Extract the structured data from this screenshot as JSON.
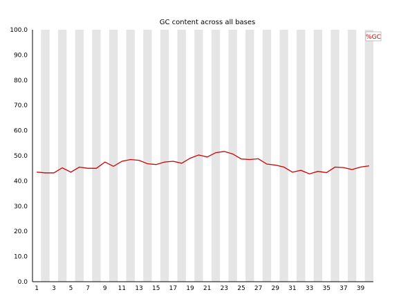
{
  "chart_data": {
    "type": "line",
    "title": "GC content across all bases",
    "xlabel": "",
    "ylabel": "",
    "xlim": [
      1,
      40
    ],
    "ylim": [
      0,
      100
    ],
    "y_ticks": [
      "0.0",
      "10.0",
      "20.0",
      "30.0",
      "40.0",
      "50.0",
      "60.0",
      "70.0",
      "80.0",
      "90.0",
      "100.0"
    ],
    "x_ticks": [
      "1",
      "3",
      "5",
      "7",
      "9",
      "11",
      "13",
      "15",
      "17",
      "19",
      "21",
      "23",
      "25",
      "27",
      "29",
      "31",
      "33",
      "35",
      "37",
      "39"
    ],
    "legend": {
      "placement": "top-right"
    },
    "grid": "alternating vertical bands",
    "colors": {
      "line": "#cc0000",
      "band": "#e5e5e5",
      "axis": "#000000"
    },
    "series": [
      {
        "name": "%GC",
        "x": [
          1,
          2,
          3,
          4,
          5,
          6,
          7,
          8,
          9,
          10,
          11,
          12,
          13,
          14,
          15,
          16,
          17,
          18,
          19,
          20,
          21,
          22,
          23,
          24,
          25,
          26,
          27,
          28,
          29,
          30,
          31,
          32,
          33,
          34,
          35,
          36,
          37,
          38,
          39,
          40
        ],
        "values": [
          43.5,
          43.2,
          43.2,
          45.2,
          43.5,
          45.5,
          45.0,
          45.0,
          47.5,
          45.8,
          47.8,
          48.5,
          48.2,
          46.8,
          46.5,
          47.5,
          47.8,
          47.0,
          49.0,
          50.3,
          49.5,
          51.2,
          51.7,
          50.7,
          48.7,
          48.5,
          48.8,
          46.7,
          46.3,
          45.5,
          43.5,
          44.2,
          42.8,
          43.8,
          43.3,
          45.5,
          45.3,
          44.5,
          45.5,
          46.0
        ]
      }
    ]
  }
}
